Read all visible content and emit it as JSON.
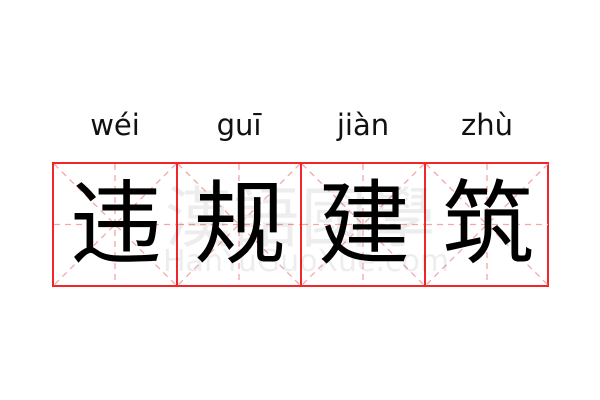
{
  "entries": [
    {
      "pinyin": "wéi",
      "char": "违"
    },
    {
      "pinyin": "guī",
      "char": "规"
    },
    {
      "pinyin": "jiàn",
      "char": "建"
    },
    {
      "pinyin": "zhù",
      "char": "筑"
    }
  ],
  "watermark": {
    "text": "漢語國學",
    "url": "HanYuGuoXue.com"
  },
  "colors": {
    "border": "#f0262a",
    "guide": "#f7a5a5",
    "text": "#000000"
  }
}
